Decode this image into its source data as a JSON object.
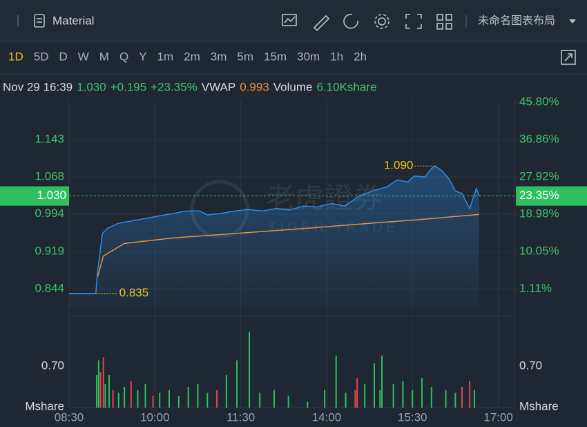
{
  "toolbar": {
    "title": "Material",
    "layout": "未命名图表布局"
  },
  "timeframes": [
    "1D",
    "5D",
    "D",
    "W",
    "M",
    "Q",
    "Y",
    "1m",
    "2m",
    "3m",
    "5m",
    "15m",
    "30m",
    "1h",
    "2h"
  ],
  "info": {
    "datetime": "Nov 29 16:39",
    "last": "1.030",
    "change": "+0.195",
    "change_pct": "+23.35%",
    "vwap_label": "VWAP",
    "vwap": "0.993",
    "volume_label": "Volume",
    "volume": "6.10Kshare"
  },
  "chart_data": {
    "type": "line",
    "grid": true,
    "watermark": [
      "老虎證券",
      "TIGER TRADE"
    ],
    "xlim": [
      0,
      467
    ],
    "xticks": [
      {
        "value": 0,
        "label": "08:30"
      },
      {
        "value": 90,
        "label": "10:00"
      },
      {
        "value": 180,
        "label": "11:30"
      },
      {
        "value": 270,
        "label": "14:00"
      },
      {
        "value": 360,
        "label": "15:30"
      },
      {
        "value": 450,
        "label": "17:00"
      }
    ],
    "ylim": [
      0.807,
      1.2175
    ],
    "yticks": [
      0.844,
      0.919,
      0.994,
      1.068,
      1.143
    ],
    "y2lim": [
      -3.35,
      45.8
    ],
    "y2ticks": [
      {
        "value": 1.11,
        "label": "1.11%"
      },
      {
        "value": 10.05,
        "label": "10.05%"
      },
      {
        "value": 18.98,
        "label": "18.98%"
      },
      {
        "value": 27.92,
        "label": "27.92%"
      },
      {
        "value": 36.86,
        "label": "36.86%"
      },
      {
        "value": 45.8,
        "label": "45.80%"
      }
    ],
    "price": {
      "color": "#2d8de8",
      "x": [
        0,
        28,
        30,
        35,
        40,
        51,
        65,
        80,
        94,
        109,
        123,
        137,
        145,
        159,
        174,
        188,
        203,
        217,
        231,
        246,
        260,
        275,
        289,
        304,
        318,
        333,
        344,
        355,
        362,
        373,
        380,
        384,
        391,
        398,
        405,
        412,
        420,
        427,
        430
      ],
      "values": [
        0.835,
        0.835,
        0.88,
        0.955,
        0.965,
        0.975,
        0.98,
        0.985,
        0.99,
        0.995,
        1.0,
        1.0,
        0.992,
        0.995,
        1.0,
        1.003,
        1.0,
        1.005,
        1.002,
        1.01,
        1.008,
        1.015,
        1.01,
        1.03,
        1.04,
        1.048,
        1.062,
        1.058,
        1.07,
        1.068,
        1.085,
        1.09,
        1.08,
        1.065,
        1.04,
        1.035,
        1.005,
        1.045,
        1.03
      ]
    },
    "vwap": {
      "color": "#e8913a",
      "x": [
        30,
        36,
        58,
        109,
        181,
        253,
        326,
        362,
        430
      ],
      "values": [
        0.869,
        0.91,
        0.935,
        0.946,
        0.956,
        0.966,
        0.977,
        0.982,
        0.993
      ]
    },
    "last_price": {
      "value": 1.03,
      "label": "1.030"
    },
    "last_change_pct": {
      "value": 23.35,
      "label": "23.35%"
    },
    "high": {
      "x": 384,
      "value": 1.09,
      "label": "1.090"
    },
    "low": {
      "x": 28,
      "value": 0.835
    },
    "volume": {
      "unit": "Mshare",
      "ylim": [
        0,
        1.4
      ],
      "yticks": [
        {
          "value": 0.7,
          "label": "0.70"
        }
      ],
      "x": [
        29,
        31,
        33,
        36,
        38,
        42,
        46,
        52,
        58,
        65,
        72,
        80,
        88,
        95,
        105,
        115,
        125,
        135,
        145,
        155,
        165,
        176,
        189,
        200,
        215,
        230,
        250,
        268,
        280,
        290,
        300,
        302,
        310,
        320,
        326,
        328,
        340,
        350,
        360,
        370,
        380,
        395,
        405,
        412,
        420,
        425
      ],
      "values": [
        0.55,
        0.8,
        0.6,
        0.85,
        0.4,
        0.55,
        0.3,
        0.25,
        0.35,
        0.45,
        0.3,
        0.4,
        0.2,
        0.25,
        0.3,
        0.2,
        0.35,
        0.4,
        0.25,
        0.3,
        0.55,
        0.8,
        1.28,
        0.25,
        0.3,
        0.2,
        0.1,
        0.3,
        0.88,
        0.25,
        0.3,
        0.5,
        0.4,
        0.75,
        0.3,
        0.88,
        0.4,
        0.45,
        0.3,
        0.5,
        0.35,
        0.3,
        0.25,
        0.35,
        0.45,
        0.3
      ],
      "colors": [
        "#2fbf5f",
        "#2fbf5f",
        "#e0484e",
        "#e0484e",
        "#2fbf5f",
        "#2fbf5f",
        "#e0484e",
        "#2fbf5f",
        "#2fbf5f",
        "#e0484e",
        "#2fbf5f",
        "#2fbf5f",
        "#e0484e",
        "#2fbf5f",
        "#2fbf5f",
        "#2fbf5f",
        "#2fbf5f",
        "#2fbf5f",
        "#2fbf5f",
        "#e0484e",
        "#2fbf5f",
        "#2fbf5f",
        "#2fbf5f",
        "#2fbf5f",
        "#2fbf5f",
        "#2fbf5f",
        "#2fbf5f",
        "#2fbf5f",
        "#2fbf5f",
        "#2fbf5f",
        "#e0484e",
        "#e0484e",
        "#2fbf5f",
        "#2fbf5f",
        "#2fbf5f",
        "#2fbf5f",
        "#2fbf5f",
        "#2fbf5f",
        "#2fbf5f",
        "#2fbf5f",
        "#2fbf5f",
        "#2fbf5f",
        "#2fbf5f",
        "#e0484e",
        "#e0484e",
        "#2fbf5f"
      ]
    }
  }
}
